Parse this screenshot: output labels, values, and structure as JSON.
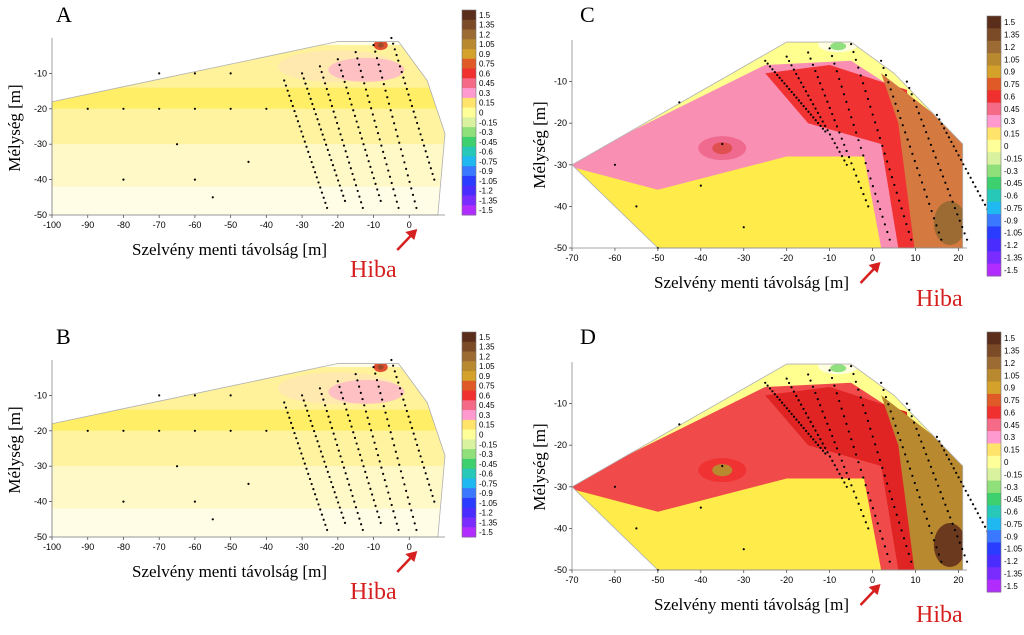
{
  "figure": {
    "hiba_label": "Hiba",
    "colorbar_ticks": [
      "1.5",
      "1.35",
      "1.2",
      "1.05",
      "0.9",
      "0.75",
      "0.6",
      "0.45",
      "0.3",
      "0.15",
      "0",
      "-0.15",
      "-0.3",
      "-0.45",
      "-0.6",
      "-0.75",
      "-0.9",
      "-1.05",
      "-1.2",
      "-1.35",
      "-1.5"
    ],
    "colorbar_colors": [
      "#5a2e1b",
      "#7b4a26",
      "#9c6a33",
      "#b8892f",
      "#d4a12a",
      "#e05a28",
      "#f02f2f",
      "#f56a86",
      "#ff9ad0",
      "#ffe36a",
      "#ffff9a",
      "#d9f2a0",
      "#8fe07a",
      "#3ecf6e",
      "#28c8b8",
      "#20b8f0",
      "#3a78ff",
      "#2a3cff",
      "#4a2cff",
      "#7a2cff",
      "#b02cff"
    ]
  },
  "chart_data": [
    {
      "type": "heatmap",
      "panel": "A",
      "xlabel": "Szelvény menti távolság [m]",
      "ylabel": "Mélység [m]",
      "xlim": [
        -100,
        10
      ],
      "ylim": [
        -50,
        0
      ],
      "x_ticks": [
        "-100",
        "-90",
        "-80",
        "-70",
        "-60",
        "-50",
        "-40",
        "-30",
        "-20",
        "-10",
        "0"
      ],
      "y_ticks": [
        "-10",
        "-20",
        "-30",
        "-40",
        "-50"
      ],
      "fault_x": 0,
      "colorbar_range": [
        -1.5,
        1.5
      ]
    },
    {
      "type": "heatmap",
      "panel": "B",
      "xlabel": "Szelvény menti távolság [m]",
      "ylabel": "Mélység [m]",
      "xlim": [
        -100,
        10
      ],
      "ylim": [
        -50,
        0
      ],
      "x_ticks": [
        "-100",
        "-90",
        "-80",
        "-70",
        "-60",
        "-50",
        "-40",
        "-30",
        "-20",
        "-10",
        "0"
      ],
      "y_ticks": [
        "-10",
        "-20",
        "-30",
        "-40",
        "-50"
      ],
      "fault_x": 0,
      "colorbar_range": [
        -1.5,
        1.5
      ]
    },
    {
      "type": "heatmap",
      "panel": "C",
      "xlabel": "Szelvény menti távolság [m]",
      "ylabel": "Mélység [m]",
      "xlim": [
        -70,
        22
      ],
      "ylim": [
        -50,
        0
      ],
      "x_ticks": [
        "-70",
        "-60",
        "-50",
        "-40",
        "-30",
        "-20",
        "-10",
        "0",
        "10",
        "20"
      ],
      "y_ticks": [
        "-10",
        "-20",
        "-30",
        "-40",
        "-50"
      ],
      "fault_x": 0,
      "colorbar_range": [
        -1.5,
        1.5
      ]
    },
    {
      "type": "heatmap",
      "panel": "D",
      "xlabel": "Szelvény menti távolság [m]",
      "ylabel": "Mélység [m]",
      "xlim": [
        -70,
        22
      ],
      "ylim": [
        -50,
        0
      ],
      "x_ticks": [
        "-70",
        "-60",
        "-50",
        "-40",
        "-30",
        "-20",
        "-10",
        "0",
        "10",
        "20"
      ],
      "y_ticks": [
        "-10",
        "-20",
        "-30",
        "-40",
        "-50"
      ],
      "fault_x": 0,
      "colorbar_range": [
        -1.5,
        1.5
      ]
    }
  ]
}
